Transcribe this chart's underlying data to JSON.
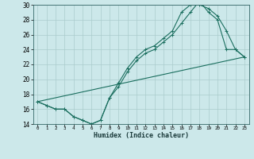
{
  "xlabel": "Humidex (Indice chaleur)",
  "xlim": [
    -0.5,
    23.5
  ],
  "ylim": [
    14,
    30
  ],
  "xticks": [
    0,
    1,
    2,
    3,
    4,
    5,
    6,
    7,
    8,
    9,
    10,
    11,
    12,
    13,
    14,
    15,
    16,
    17,
    18,
    19,
    20,
    21,
    22,
    23
  ],
  "yticks": [
    14,
    16,
    18,
    20,
    22,
    24,
    26,
    28,
    30
  ],
  "bg_color": "#cce8ea",
  "grid_color": "#aacccc",
  "line_color": "#1a6e5e",
  "line1_x": [
    0,
    1,
    2,
    3,
    4,
    5,
    6,
    7,
    8,
    9,
    10,
    11,
    12,
    13,
    14,
    15,
    16,
    17,
    18,
    19,
    20,
    21,
    22,
    23
  ],
  "line1_y": [
    17,
    16.5,
    16,
    16,
    15,
    14.5,
    14,
    14.5,
    17.5,
    19.5,
    21.5,
    23.0,
    24.0,
    24.5,
    25.5,
    26.5,
    29.0,
    30.0,
    30.0,
    29.5,
    28.5,
    26.5,
    24,
    23
  ],
  "line2_x": [
    0,
    1,
    2,
    3,
    4,
    5,
    6,
    7,
    8,
    9,
    10,
    11,
    12,
    13,
    14,
    15,
    16,
    17,
    18,
    19,
    20,
    21,
    22,
    23
  ],
  "line2_y": [
    17,
    16.5,
    16,
    16,
    15,
    14.5,
    14,
    14.5,
    17.5,
    19.0,
    21.0,
    22.5,
    23.5,
    24.0,
    25.0,
    26.0,
    27.5,
    29.0,
    30.5,
    29.0,
    28.0,
    24,
    24,
    23
  ],
  "line3_x": [
    0,
    23
  ],
  "line3_y": [
    17,
    23
  ]
}
